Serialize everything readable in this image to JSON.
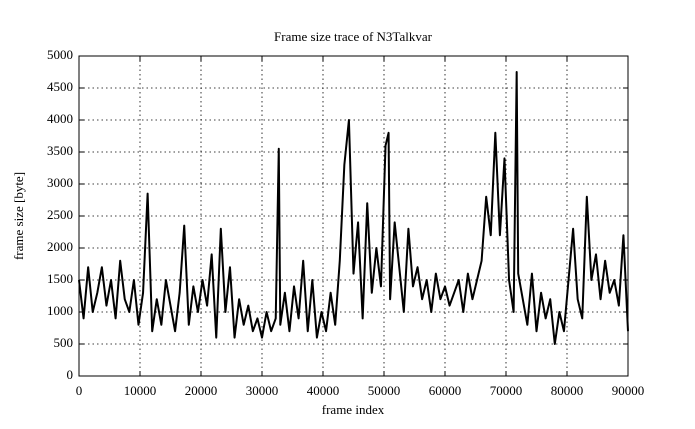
{
  "chart_data": {
    "type": "line",
    "title": "Frame size trace of N3Talkvar",
    "x_label": "frame index",
    "y_label": "frame size [byte]",
    "xlim": [
      0,
      90000
    ],
    "ylim": [
      0,
      5000
    ],
    "xticks": [
      0,
      10000,
      20000,
      30000,
      40000,
      50000,
      60000,
      70000,
      80000,
      90000
    ],
    "yticks": [
      0,
      500,
      1000,
      1500,
      2000,
      2500,
      3000,
      3500,
      4000,
      4500,
      5000
    ],
    "grid": true,
    "series": [
      {
        "color": "#000000",
        "x": [
          0,
          750,
          1500,
          2250,
          3000,
          3750,
          4500,
          5250,
          6000,
          6750,
          7500,
          8250,
          9000,
          9750,
          10500,
          11250,
          12000,
          12750,
          13500,
          14250,
          15000,
          15750,
          16500,
          17250,
          18000,
          18750,
          19500,
          20250,
          21000,
          21750,
          22500,
          23250,
          24000,
          24750,
          25500,
          26250,
          27000,
          27750,
          28500,
          29250,
          30000,
          30750,
          31500,
          32250,
          32750,
          33000,
          33750,
          34500,
          35250,
          36000,
          36750,
          37500,
          38250,
          39000,
          39750,
          40500,
          41250,
          42000,
          42750,
          43500,
          44250,
          45000,
          45750,
          46500,
          47250,
          48000,
          48750,
          49500,
          50250,
          50750,
          51000,
          51750,
          52500,
          53250,
          54000,
          54750,
          55500,
          56250,
          57000,
          57750,
          58500,
          59250,
          60000,
          60750,
          61500,
          62250,
          63000,
          63750,
          64500,
          65250,
          66000,
          66750,
          67500,
          68250,
          69000,
          69750,
          70500,
          71250,
          71750,
          72000,
          72750,
          73500,
          74250,
          75000,
          75750,
          76500,
          77250,
          78000,
          78750,
          79500,
          80250,
          81000,
          81750,
          82500,
          83250,
          84000,
          84750,
          85500,
          86250,
          87000,
          87750,
          88500,
          89250,
          90000
        ],
        "values": [
          1500,
          900,
          1700,
          1000,
          1300,
          1700,
          1100,
          1500,
          900,
          1800,
          1200,
          1000,
          1500,
          800,
          1300,
          2850,
          700,
          1200,
          800,
          1500,
          1100,
          700,
          1300,
          2350,
          800,
          1400,
          1000,
          1500,
          1100,
          1900,
          600,
          2300,
          1000,
          1700,
          600,
          1200,
          800,
          1100,
          700,
          900,
          600,
          1000,
          700,
          900,
          3550,
          800,
          1300,
          700,
          1400,
          900,
          1800,
          700,
          1500,
          600,
          1000,
          700,
          1300,
          800,
          1800,
          3300,
          4000,
          1600,
          2400,
          900,
          2700,
          1300,
          2000,
          1400,
          3600,
          3800,
          1200,
          2400,
          1700,
          1000,
          2300,
          1400,
          1700,
          1200,
          1500,
          1000,
          1600,
          1200,
          1400,
          1100,
          1300,
          1500,
          1000,
          1600,
          1200,
          1500,
          1800,
          2800,
          2200,
          3800,
          2200,
          3400,
          1500,
          1000,
          4750,
          1600,
          1200,
          800,
          1600,
          700,
          1300,
          900,
          1200,
          500,
          1000,
          700,
          1500,
          2300,
          1200,
          900,
          2800,
          1500,
          1900,
          1200,
          1800,
          1300,
          1500,
          1100,
          2200,
          700
        ]
      }
    ]
  }
}
